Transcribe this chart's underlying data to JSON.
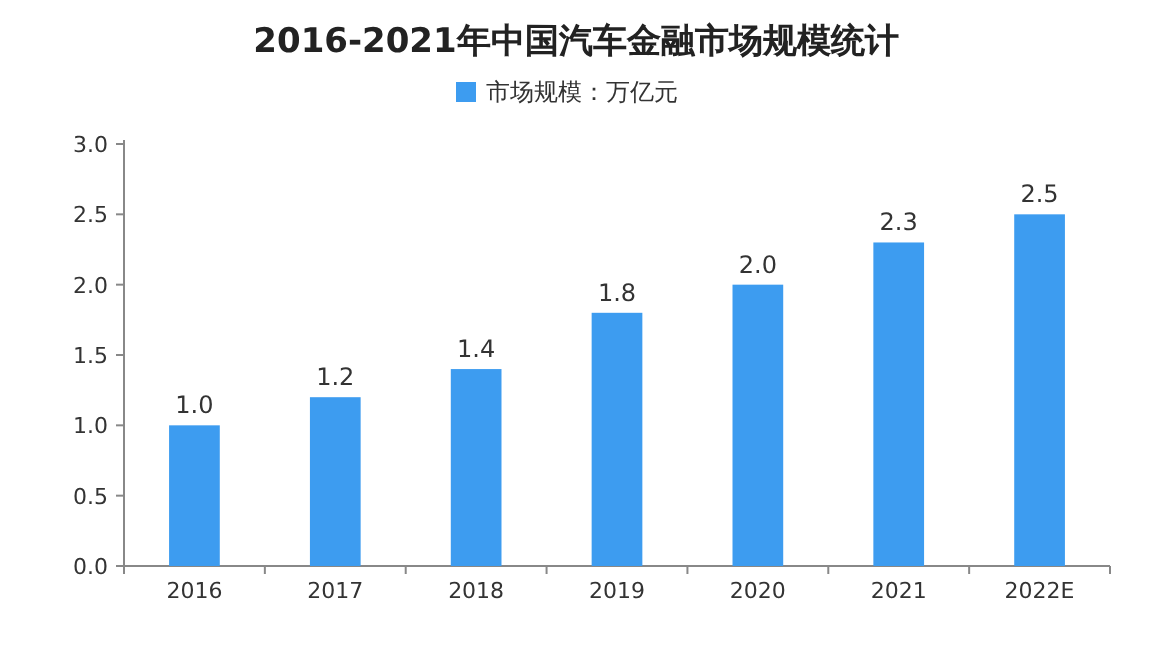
{
  "chart_data": {
    "type": "bar",
    "title": "2016-2021年中国汽车金融市场规模统计",
    "categories": [
      "2016",
      "2017",
      "2018",
      "2019",
      "2020",
      "2021",
      "2022E"
    ],
    "series": [
      {
        "name": "市场规模：万亿元",
        "color": "#3d9cf0",
        "values": [
          1.0,
          1.2,
          1.4,
          1.8,
          2.0,
          2.3,
          2.5
        ]
      }
    ],
    "value_labels": [
      "1.0",
      "1.2",
      "1.4",
      "1.8",
      "2.0",
      "2.3",
      "2.5"
    ],
    "ylim": [
      0,
      3
    ],
    "yticks": [
      {
        "value": 0,
        "label": "0.0"
      },
      {
        "value": 0.5,
        "label": "0.5"
      },
      {
        "value": 1,
        "label": "1.0"
      },
      {
        "value": 1.5,
        "label": "1.5"
      },
      {
        "value": 2,
        "label": "2.0"
      },
      {
        "value": 2.5,
        "label": "2.5"
      },
      {
        "value": 3,
        "label": "3.0"
      }
    ],
    "grid": false,
    "legend": "top"
  }
}
